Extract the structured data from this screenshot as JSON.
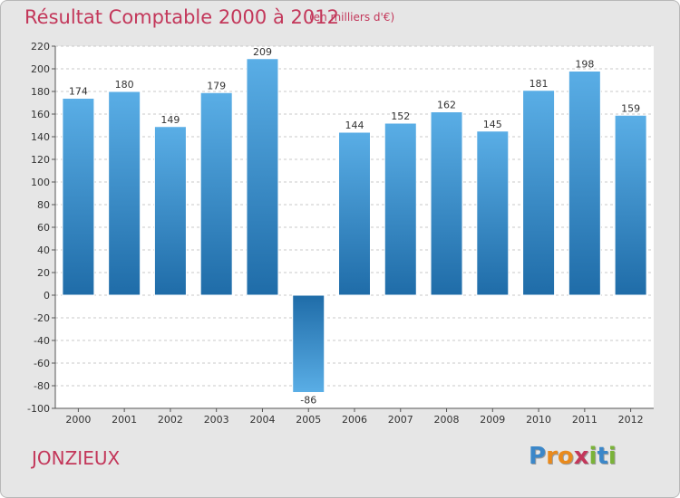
{
  "chart_data": {
    "type": "bar",
    "title": "Résultat Comptable 2000 à 2012",
    "subtitle": "(en milliers d'€)",
    "categories": [
      "2000",
      "2001",
      "2002",
      "2003",
      "2004",
      "2005",
      "2006",
      "2007",
      "2008",
      "2009",
      "2010",
      "2011",
      "2012"
    ],
    "values": [
      174,
      180,
      149,
      179,
      209,
      -86,
      144,
      152,
      162,
      145,
      181,
      198,
      159
    ],
    "ylim": [
      -100,
      220
    ],
    "yticks": [
      -100,
      -80,
      -60,
      -40,
      -20,
      0,
      20,
      40,
      60,
      80,
      100,
      120,
      140,
      160,
      180,
      200,
      220
    ],
    "grid": true,
    "xlabel": "",
    "ylabel": ""
  },
  "footer": {
    "commune": "JONZIEUX",
    "logo_letters": [
      "P",
      "r",
      "o",
      "x",
      "i",
      "t",
      "i"
    ]
  },
  "colors": {
    "title": "#c3375a",
    "bar_light": "#5aaee6",
    "bar_dark": "#1f6ca8",
    "logo": [
      "#3b87c9",
      "#e98a1d",
      "#e98a1d",
      "#c3375a",
      "#7ab338",
      "#3b87c9",
      "#7ab338"
    ]
  }
}
